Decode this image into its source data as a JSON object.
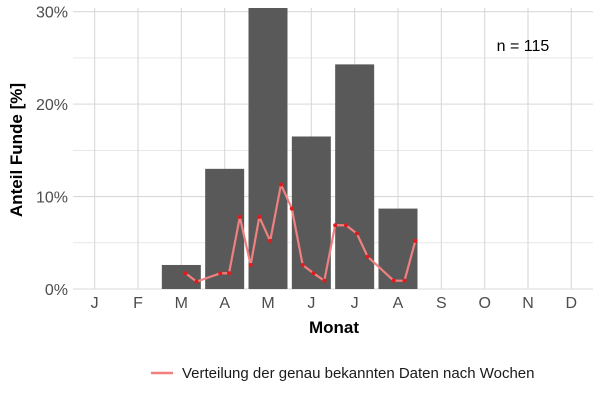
{
  "chart_data": {
    "type": "bar",
    "xlabel": "Monat",
    "ylabel": "Anteil Funde [%]",
    "annotation": "n = 115",
    "categories": [
      "J",
      "F",
      "M",
      "A",
      "M",
      "J",
      "J",
      "A",
      "S",
      "O",
      "N",
      "D"
    ],
    "values": [
      0,
      0,
      2.6,
      13.0,
      30.4,
      16.5,
      24.3,
      8.7,
      0,
      0,
      0,
      0
    ],
    "ylim": [
      0,
      30.4
    ],
    "yticks": [
      0,
      10,
      20,
      30
    ],
    "ytick_labels": [
      "0%",
      "10%",
      "20%",
      "30%"
    ],
    "grid": true,
    "legend_position": "bottom",
    "colors": {
      "bar": "#595959",
      "line": "#f08080",
      "point": "#e31a1c",
      "grid": "#d9d9d9"
    },
    "line_series": {
      "name": "Verteilung der genau bekannten Daten nach Wochen",
      "x": [
        3.1,
        3.35,
        3.9,
        4.1,
        4.35,
        4.6,
        4.8,
        5.05,
        5.3,
        5.55,
        5.8,
        6.05,
        6.3,
        6.55,
        6.8,
        7.05,
        7.3,
        7.9,
        8.15,
        8.4
      ],
      "y": [
        1.7,
        0.8,
        1.7,
        1.7,
        7.8,
        2.6,
        7.8,
        5.2,
        11.3,
        8.7,
        2.6,
        1.7,
        0.9,
        6.9,
        6.9,
        6.0,
        3.5,
        0.9,
        0.9,
        5.2
      ]
    }
  }
}
